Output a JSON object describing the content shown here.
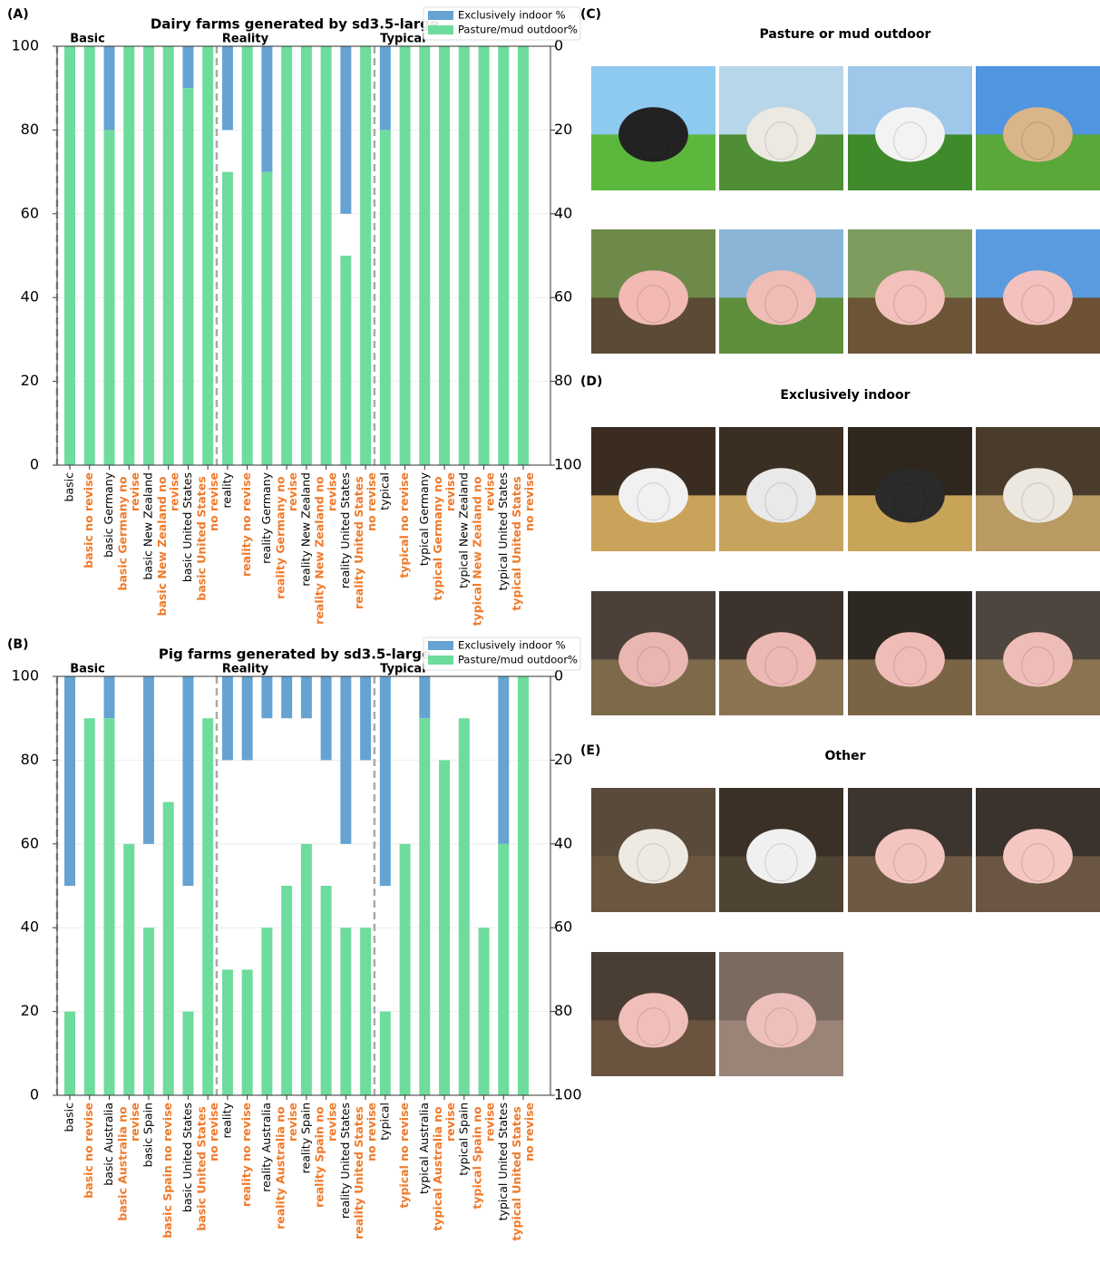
{
  "chart_data": [
    {
      "type": "bar",
      "panel_label": "(A)",
      "title": "Dairy farms generated by sd3.5-large",
      "categories": [
        "basic",
        "basic  no revise",
        "basic Germany",
        "basic Germany no revise",
        "basic New Zealand",
        "basic New Zealand no revise",
        "basic  United States",
        "basic  United States no revise",
        "reality",
        "reality  no revise",
        "reality Germany",
        "reality Germany no revise",
        "reality New Zealand",
        "reality New Zealand no revise",
        "reality  United States",
        "reality  United States no revise",
        "typical",
        "typical  no revise",
        "typical Germany",
        "typical Germany no revise",
        "typical New Zealand",
        "typical New Zealand no revise",
        "typical  United States",
        "typical  United States no revise"
      ],
      "category_colors": [
        "#000000",
        "#f07a2a",
        "#000000",
        "#f07a2a",
        "#000000",
        "#f07a2a",
        "#000000",
        "#f07a2a",
        "#000000",
        "#f07a2a",
        "#000000",
        "#f07a2a",
        "#000000",
        "#f07a2a",
        "#000000",
        "#f07a2a",
        "#000000",
        "#f07a2a",
        "#000000",
        "#f07a2a",
        "#000000",
        "#f07a2a",
        "#000000",
        "#f07a2a"
      ],
      "group_labels": [
        "Basic",
        "Reality",
        "Typical"
      ],
      "series": [
        {
          "name": "Exclusively indoor %",
          "color": "#66a3d2",
          "axis": "y2",
          "values": [
            0,
            0,
            20,
            0,
            0,
            0,
            10,
            0,
            20,
            0,
            30,
            0,
            0,
            0,
            40,
            0,
            20,
            0,
            0,
            0,
            0,
            0,
            0,
            0
          ]
        },
        {
          "name": "Pasture/mud outdoor%",
          "color": "#6edc9c",
          "values": [
            100,
            100,
            80,
            100,
            100,
            100,
            90,
            100,
            70,
            100,
            70,
            100,
            100,
            100,
            50,
            100,
            80,
            100,
            100,
            100,
            100,
            100,
            100,
            100
          ]
        }
      ],
      "ylim": [
        0,
        100
      ],
      "yticks": [
        0,
        20,
        40,
        60,
        80,
        100
      ],
      "y2lim": [
        100,
        0
      ],
      "y2ticks": [
        0,
        20,
        40,
        60,
        80,
        100
      ],
      "grid": true,
      "legend": "upper right"
    },
    {
      "type": "bar",
      "panel_label": "(B)",
      "title": "Pig farms generated by sd3.5-large",
      "categories": [
        "basic",
        "basic  no revise",
        "basic Australia",
        "basic Australia no revise",
        "basic Spain",
        "basic Spain no revise",
        "basic  United States",
        "basic  United States no revise",
        "reality",
        "reality  no revise",
        "reality Australia",
        "reality Australia no revise",
        "reality Spain",
        "reality Spain no revise",
        "reality  United States",
        "reality  United States no revise",
        "typical",
        "typical  no revise",
        "typical Australia",
        "typical Australia no revise",
        "typical Spain",
        "typical Spain no revise",
        "typical  United States",
        "typical  United States no revise"
      ],
      "category_colors": [
        "#000000",
        "#f07a2a",
        "#000000",
        "#f07a2a",
        "#000000",
        "#f07a2a",
        "#000000",
        "#f07a2a",
        "#000000",
        "#f07a2a",
        "#000000",
        "#f07a2a",
        "#000000",
        "#f07a2a",
        "#000000",
        "#f07a2a",
        "#000000",
        "#f07a2a",
        "#000000",
        "#f07a2a",
        "#000000",
        "#f07a2a",
        "#000000",
        "#f07a2a"
      ],
      "group_labels": [
        "Basic",
        "Reality",
        "Typical"
      ],
      "series": [
        {
          "name": "Exclusively indoor %",
          "color": "#66a3d2",
          "axis": "y2",
          "values": [
            50,
            0,
            10,
            0,
            40,
            0,
            50,
            0,
            20,
            20,
            10,
            10,
            10,
            20,
            40,
            20,
            50,
            0,
            10,
            0,
            0,
            0,
            40,
            0
          ]
        },
        {
          "name": "Pasture/mud outdoor%",
          "color": "#6edc9c",
          "values": [
            20,
            90,
            90,
            60,
            40,
            70,
            20,
            90,
            30,
            30,
            40,
            50,
            60,
            50,
            40,
            40,
            20,
            60,
            90,
            80,
            90,
            40,
            60,
            100
          ]
        }
      ],
      "ylim": [
        0,
        100
      ],
      "yticks": [
        0,
        20,
        40,
        60,
        80,
        100
      ],
      "y2lim": [
        100,
        0
      ],
      "y2ticks": [
        0,
        20,
        40,
        60,
        80,
        100
      ],
      "grid": true,
      "legend": "upper right"
    }
  ],
  "image_panels": [
    {
      "label": "(C)",
      "title": "Pasture or mud outdoor"
    },
    {
      "label": "(D)",
      "title": "Exclusively indoor"
    },
    {
      "label": "(E)",
      "title": "Other"
    }
  ]
}
